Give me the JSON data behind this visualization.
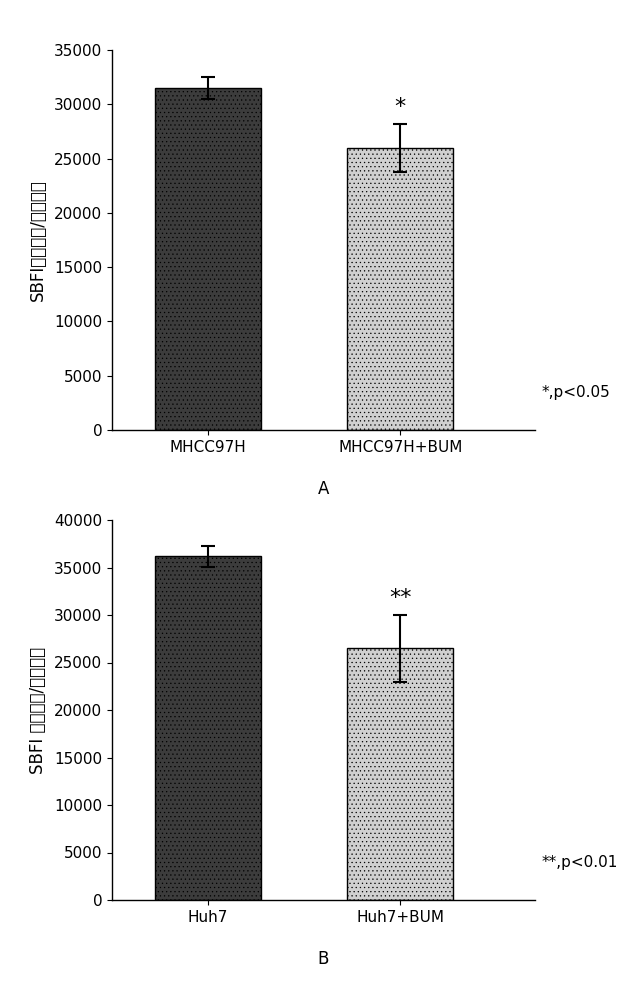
{
  "panel_A": {
    "categories": [
      "MHCC97H",
      "MHCC97H+BUM"
    ],
    "values": [
      31500,
      26000
    ],
    "errors": [
      1000,
      2200
    ],
    "bar_colors": [
      "#3c3c3c",
      "#d0d0d0"
    ],
    "ylim": [
      0,
      35000
    ],
    "yticks": [
      0,
      5000,
      10000,
      15000,
      20000,
      25000,
      30000,
      35000
    ],
    "ylabel": "SBFI荧光强度/毫克蛋白",
    "sig_label": "*",
    "sig_bar_idx": 1,
    "pvalue_text": "*,p<0.05",
    "panel_label": "A"
  },
  "panel_B": {
    "categories": [
      "Huh7",
      "Huh7+BUM"
    ],
    "values": [
      36200,
      26500
    ],
    "errors": [
      1100,
      3500
    ],
    "bar_colors": [
      "#3c3c3c",
      "#d0d0d0"
    ],
    "ylim": [
      0,
      40000
    ],
    "yticks": [
      0,
      5000,
      10000,
      15000,
      20000,
      25000,
      30000,
      35000,
      40000
    ],
    "ylabel": "SBFI 荧光强度/毫克蛋白",
    "sig_label": "**",
    "sig_bar_idx": 1,
    "pvalue_text": "**,p<0.01",
    "panel_label": "B"
  },
  "bar_width": 0.55,
  "hatch_dark": "....",
  "hatch_light": "....",
  "edge_color": "#000000",
  "background_color": "#ffffff",
  "font_size_tick": 11,
  "font_size_ylabel": 12,
  "font_size_sig": 16,
  "font_size_panel": 12,
  "font_size_pvalue": 11
}
